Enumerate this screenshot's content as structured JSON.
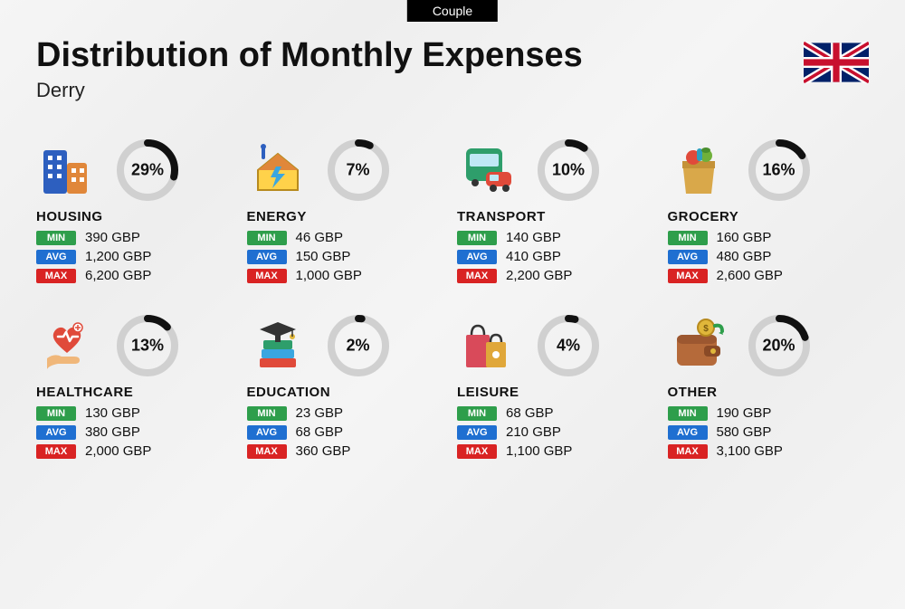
{
  "tag": "Couple",
  "title": "Distribution of Monthly Expenses",
  "city": "Derry",
  "currency": "GBP",
  "labels": {
    "min": "MIN",
    "avg": "AVG",
    "max": "MAX"
  },
  "colors": {
    "min_badge": "#2e9e4b",
    "avg_badge": "#1f6fd1",
    "max_badge": "#d92323",
    "ring_fg": "#111111",
    "ring_bg": "#d0d0d0",
    "text": "#111111",
    "background": "#f3f3f3"
  },
  "ring": {
    "radius": 30,
    "stroke_width": 8,
    "circumference": 188.5
  },
  "categories": [
    {
      "key": "housing",
      "name": "HOUSING",
      "percent": 29,
      "min": "390 GBP",
      "avg": "1,200 GBP",
      "max": "6,200 GBP",
      "icon": "buildings"
    },
    {
      "key": "energy",
      "name": "ENERGY",
      "percent": 7,
      "min": "46 GBP",
      "avg": "150 GBP",
      "max": "1,000 GBP",
      "icon": "energy-house"
    },
    {
      "key": "transport",
      "name": "TRANSPORT",
      "percent": 10,
      "min": "140 GBP",
      "avg": "410 GBP",
      "max": "2,200 GBP",
      "icon": "bus-car"
    },
    {
      "key": "grocery",
      "name": "GROCERY",
      "percent": 16,
      "min": "160 GBP",
      "avg": "480 GBP",
      "max": "2,600 GBP",
      "icon": "grocery-bag"
    },
    {
      "key": "healthcare",
      "name": "HEALTHCARE",
      "percent": 13,
      "min": "130 GBP",
      "avg": "380 GBP",
      "max": "2,000 GBP",
      "icon": "heart-hand"
    },
    {
      "key": "education",
      "name": "EDUCATION",
      "percent": 2,
      "min": "23 GBP",
      "avg": "68 GBP",
      "max": "360 GBP",
      "icon": "books-cap"
    },
    {
      "key": "leisure",
      "name": "LEISURE",
      "percent": 4,
      "min": "68 GBP",
      "avg": "210 GBP",
      "max": "1,100 GBP",
      "icon": "shopping-bags"
    },
    {
      "key": "other",
      "name": "OTHER",
      "percent": 20,
      "min": "190 GBP",
      "avg": "580 GBP",
      "max": "3,100 GBP",
      "icon": "wallet"
    }
  ]
}
